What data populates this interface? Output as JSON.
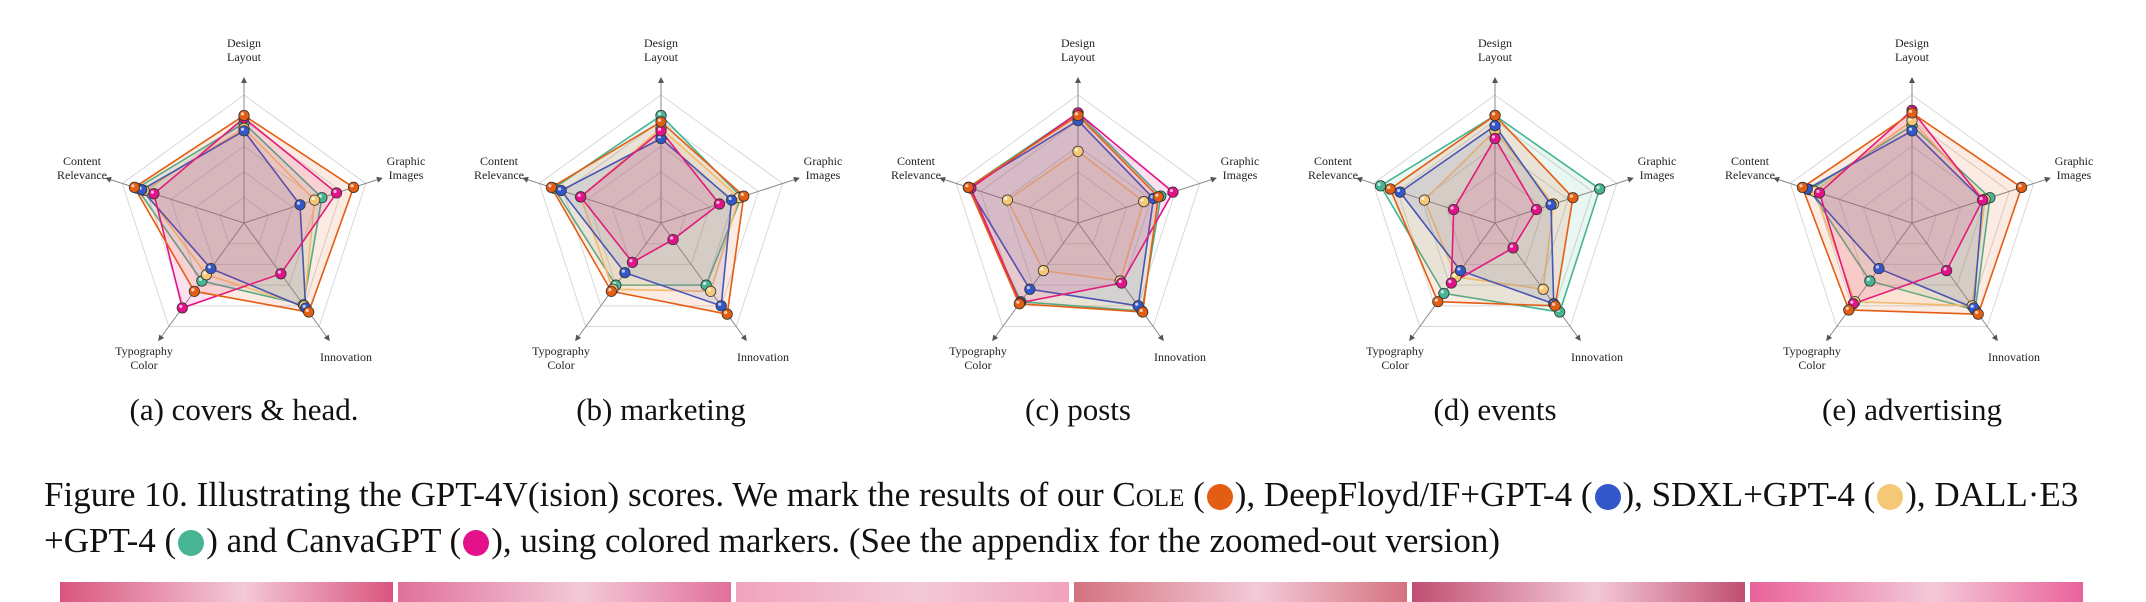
{
  "chart_data": [
    {
      "type": "radar",
      "caption": "(a) covers & head.",
      "axes": [
        "Design Layout",
        "Graphic Images",
        "Innovation",
        "Typography Color",
        "Content Relevance"
      ],
      "series": [
        {
          "key": "cole",
          "values": [
            8.4,
            9.0,
            8.6,
            6.6,
            9.0
          ]
        },
        {
          "key": "deepfloyd",
          "values": [
            7.2,
            4.6,
            8.2,
            4.4,
            8.4
          ]
        },
        {
          "key": "sdxl",
          "values": [
            7.4,
            5.8,
            8.0,
            5.0,
            8.2
          ]
        },
        {
          "key": "dalle3",
          "values": [
            7.8,
            6.4,
            7.9,
            5.6,
            8.8
          ]
        },
        {
          "key": "canvagpt",
          "values": [
            8.2,
            7.6,
            4.9,
            8.2,
            7.4
          ]
        }
      ]
    },
    {
      "type": "radar",
      "caption": "(b) marketing",
      "axes": [
        "Design Layout",
        "Graphic Images",
        "Innovation",
        "Typography Color",
        "Content Relevance"
      ],
      "series": [
        {
          "key": "cole",
          "values": [
            7.9,
            6.8,
            8.8,
            6.6,
            9.0
          ]
        },
        {
          "key": "deepfloyd",
          "values": [
            6.6,
            5.8,
            8.0,
            4.8,
            8.2
          ]
        },
        {
          "key": "sdxl",
          "values": [
            7.4,
            6.4,
            6.6,
            6.4,
            6.6
          ]
        },
        {
          "key": "dalle3",
          "values": [
            8.4,
            6.6,
            6.0,
            6.0,
            8.8
          ]
        },
        {
          "key": "canvagpt",
          "values": [
            7.2,
            4.8,
            1.6,
            3.8,
            6.6
          ]
        }
      ]
    },
    {
      "type": "radar",
      "caption": "(c) posts",
      "axes": [
        "Design Layout",
        "Graphic Images",
        "Innovation",
        "Typography Color",
        "Content Relevance"
      ],
      "series": [
        {
          "key": "cole",
          "values": [
            8.4,
            6.6,
            8.6,
            7.8,
            9.0
          ]
        },
        {
          "key": "deepfloyd",
          "values": [
            8.0,
            6.2,
            8.0,
            6.4,
            9.0
          ]
        },
        {
          "key": "sdxl",
          "values": [
            5.6,
            5.4,
            5.6,
            4.6,
            5.8
          ]
        },
        {
          "key": "dalle3",
          "values": [
            8.6,
            6.8,
            8.5,
            7.6,
            9.0
          ]
        },
        {
          "key": "canvagpt",
          "values": [
            8.6,
            7.8,
            5.8,
            7.7,
            8.8
          ]
        }
      ]
    },
    {
      "type": "radar",
      "caption": "(d) events",
      "axes": [
        "Design Layout",
        "Graphic Images",
        "Innovation",
        "Typography Color",
        "Content Relevance"
      ],
      "series": [
        {
          "key": "cole",
          "values": [
            8.4,
            6.4,
            8.0,
            7.6,
            8.6
          ]
        },
        {
          "key": "deepfloyd",
          "values": [
            7.6,
            4.6,
            7.8,
            4.6,
            7.8
          ]
        },
        {
          "key": "sdxl",
          "values": [
            7.2,
            4.8,
            6.4,
            5.2,
            5.8
          ]
        },
        {
          "key": "dalle3",
          "values": [
            8.4,
            8.6,
            8.6,
            6.8,
            9.4
          ]
        },
        {
          "key": "canvagpt",
          "values": [
            6.6,
            3.4,
            2.4,
            5.8,
            3.4
          ]
        }
      ]
    },
    {
      "type": "radar",
      "caption": "(e) advertising",
      "axes": [
        "Design Layout",
        "Graphic Images",
        "Innovation",
        "Typography Color",
        "Content Relevance"
      ],
      "series": [
        {
          "key": "cole",
          "values": [
            8.6,
            9.0,
            8.8,
            8.4,
            9.0
          ]
        },
        {
          "key": "deepfloyd",
          "values": [
            7.2,
            5.8,
            8.2,
            4.4,
            8.6
          ]
        },
        {
          "key": "sdxl",
          "values": [
            8.0,
            6.0,
            8.0,
            7.6,
            8.0
          ]
        },
        {
          "key": "dalle3",
          "values": [
            7.6,
            6.4,
            8.4,
            5.6,
            8.4
          ]
        },
        {
          "key": "canvagpt",
          "values": [
            8.8,
            5.8,
            4.6,
            7.8,
            7.6
          ]
        }
      ]
    }
  ],
  "series_colors": {
    "cole": "#e35d12",
    "deepfloyd": "#3356c9",
    "sdxl": "#f5c878",
    "dalle3": "#47b494",
    "canvagpt": "#e4128a"
  },
  "caption": {
    "lead": "Figure 10. Illustrating the GPT-4V(ision) scores. We mark the results of our ",
    "cole_name": "Cole",
    "after_cole": " (",
    "t1": "), DeepFloyd/IF+GPT-4 (",
    "t2": "), SDXL+GPT-4 (",
    "t3": "), DALL·E3 +GPT-4 (",
    "t4": ") and CanvaGPT (",
    "t5": "), using colored markers. (See the appendix for the zoomed-out version)"
  },
  "marker_icons": [
    "orange-circle",
    "blue-circle",
    "yellow-circle",
    "teal-circle",
    "pink-circle"
  ],
  "thumbnail_colors": [
    "#d9557f",
    "#e0709a",
    "#f1a3be",
    "#d4727f",
    "#c14e72",
    "#e9629a"
  ]
}
